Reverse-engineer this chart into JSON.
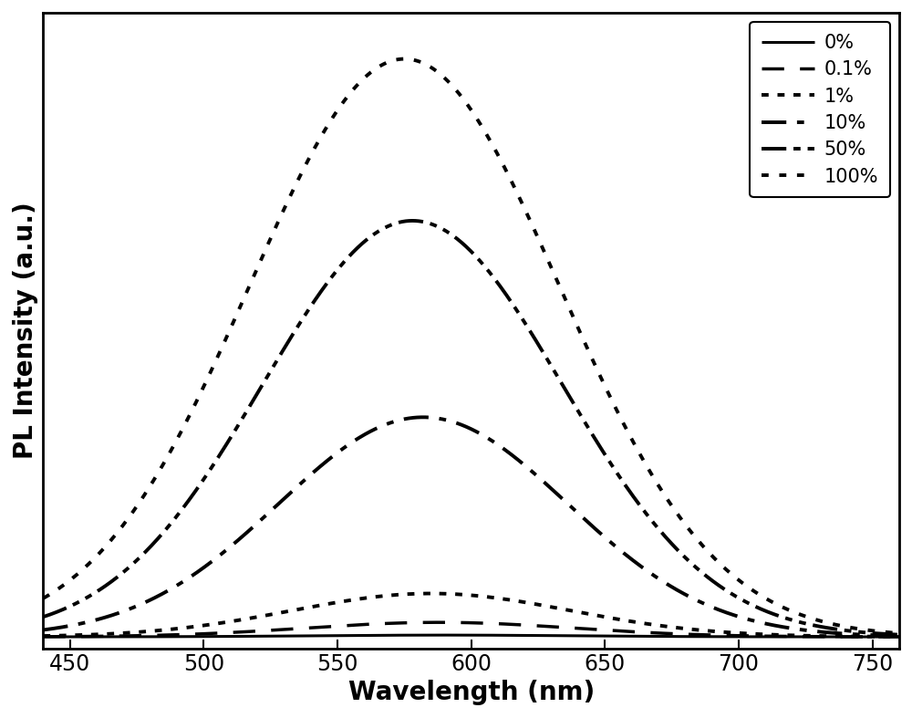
{
  "xlabel": "Wavelength (nm)",
  "ylabel": "PL Intensity (a.u.)",
  "xlim": [
    440,
    760
  ],
  "ylim": [
    -0.02,
    1.08
  ],
  "xticks": [
    450,
    500,
    550,
    600,
    650,
    700,
    750
  ],
  "series": [
    {
      "label": "0%",
      "peak": 590,
      "sigma": 48,
      "amplitude": 0.003,
      "linestyle": "solid",
      "linewidth": 2.2
    },
    {
      "label": "0.1%",
      "peak": 588,
      "sigma": 50,
      "amplitude": 0.025,
      "linestyle": "dashed",
      "linewidth": 2.5
    },
    {
      "label": "1%",
      "peak": 585,
      "sigma": 52,
      "amplitude": 0.075,
      "linestyle": "dotted",
      "linewidth": 2.8
    },
    {
      "label": "10%",
      "peak": 582,
      "sigma": 54,
      "amplitude": 0.38,
      "linestyle": "dashdot",
      "linewidth": 2.8
    },
    {
      "label": "50%",
      "peak": 578,
      "sigma": 56,
      "amplitude": 0.72,
      "linestyle": "dashdotdot",
      "linewidth": 2.8
    },
    {
      "label": "100%",
      "peak": 575,
      "sigma": 58,
      "amplitude": 1.0,
      "linestyle": "bigdots",
      "linewidth": 2.8
    }
  ],
  "legend_fontsize": 15,
  "axis_fontsize": 20,
  "tick_fontsize": 17,
  "background_color": "#ffffff",
  "line_color": "#000000"
}
